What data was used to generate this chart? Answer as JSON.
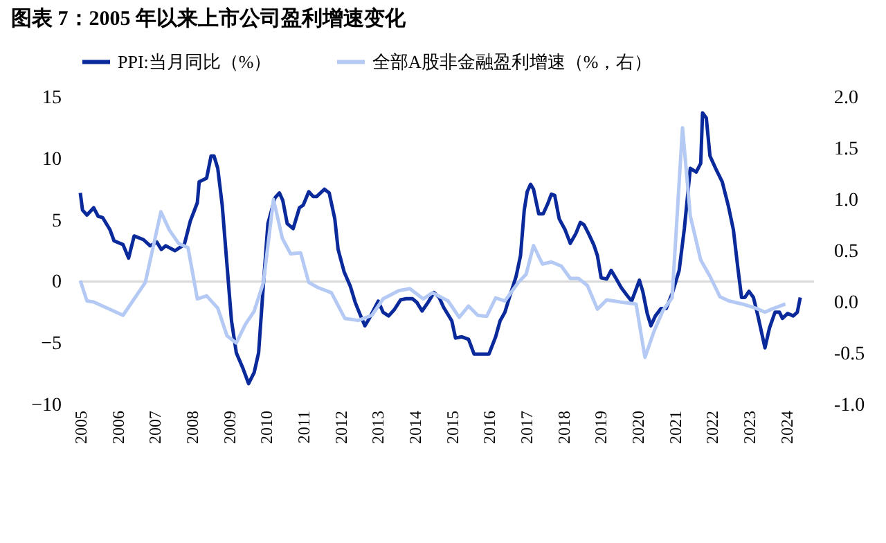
{
  "chart_data": {
    "type": "line",
    "title": "图表 7：2005 年以来上市公司盈利增速变化",
    "xlim": [
      2005,
      2024.75
    ],
    "xticks": [
      2005,
      2006,
      2007,
      2008,
      2009,
      2010,
      2011,
      2012,
      2013,
      2014,
      2015,
      2016,
      2017,
      2018,
      2019,
      2020,
      2021,
      2022,
      2023,
      2024
    ],
    "ylim": [
      -10,
      15
    ],
    "yticks": [
      -10,
      -5,
      0,
      5,
      10,
      15
    ],
    "y2lim": [
      -1,
      2
    ],
    "y2ticks": [
      {
        "value": -1,
        "label": "-1.0"
      },
      {
        "value": -0.5,
        "label": "-0.5"
      },
      {
        "value": 0,
        "label": "0.0"
      },
      {
        "value": 0.5,
        "label": "0.5"
      },
      {
        "value": 1,
        "label": "1.0"
      },
      {
        "value": 1.5,
        "label": "1.5"
      },
      {
        "value": 2,
        "label": "2.0"
      }
    ],
    "legend": "top",
    "grid": false,
    "ref_lines": [
      {
        "axis": "y",
        "value": 0,
        "color": "#d9d9d9"
      }
    ],
    "series": [
      {
        "name": "PPI:当月同比（%）",
        "color": "#0a2a9c",
        "x": [
          2005.0,
          2005.06,
          2005.18,
          2005.36,
          2005.48,
          2005.6,
          2005.8,
          2005.91,
          2006.15,
          2006.3,
          2006.45,
          2006.7,
          2006.88,
          2007.06,
          2007.18,
          2007.3,
          2007.55,
          2007.8,
          2007.96,
          2008.15,
          2008.2,
          2008.4,
          2008.52,
          2008.6,
          2008.7,
          2008.82,
          2008.95,
          2009.07,
          2009.2,
          2009.37,
          2009.53,
          2009.68,
          2009.8,
          2009.93,
          2010.05,
          2010.24,
          2010.36,
          2010.45,
          2010.57,
          2010.73,
          2010.9,
          2011.0,
          2011.15,
          2011.27,
          2011.36,
          2011.57,
          2011.7,
          2011.85,
          2011.94,
          2012.1,
          2012.27,
          2012.4,
          2012.52,
          2012.66,
          2012.78,
          2012.9,
          2013.02,
          2013.15,
          2013.3,
          2013.45,
          2013.62,
          2013.77,
          2013.94,
          2014.06,
          2014.2,
          2014.36,
          2014.52,
          2014.66,
          2014.78,
          2015.0,
          2015.1,
          2015.27,
          2015.45,
          2015.6,
          2015.88,
          2016.0,
          2016.18,
          2016.3,
          2016.43,
          2016.55,
          2016.73,
          2016.85,
          2016.95,
          2017.03,
          2017.12,
          2017.2,
          2017.34,
          2017.46,
          2017.58,
          2017.68,
          2017.77,
          2017.89,
          2018.05,
          2018.19,
          2018.34,
          2018.46,
          2018.56,
          2018.68,
          2018.82,
          2018.92,
          2019.02,
          2019.17,
          2019.29,
          2019.41,
          2019.56,
          2019.71,
          2019.84,
          2020.05,
          2020.14,
          2020.26,
          2020.36,
          2020.48,
          2020.63,
          2020.77,
          2020.93,
          2021.12,
          2021.26,
          2021.42,
          2021.58,
          2021.7,
          2021.75,
          2021.85,
          2021.95,
          2022.1,
          2022.28,
          2022.44,
          2022.58,
          2022.7,
          2022.8,
          2022.89,
          2023.0,
          2023.12,
          2023.24,
          2023.43,
          2023.55,
          2023.7,
          2023.82,
          2023.9,
          2024.04,
          2024.19,
          2024.3,
          2024.38
        ],
        "values": [
          7.2,
          5.8,
          5.4,
          6.0,
          5.3,
          5.2,
          4.2,
          3.3,
          3.0,
          1.9,
          3.7,
          3.4,
          2.9,
          3.2,
          2.6,
          2.9,
          2.5,
          3.0,
          4.9,
          6.4,
          8.1,
          8.4,
          10.2,
          10.2,
          9.2,
          6.2,
          1.3,
          -3.2,
          -5.8,
          -7.0,
          -8.3,
          -7.4,
          -5.8,
          -0.2,
          4.7,
          6.8,
          7.2,
          6.6,
          4.7,
          4.3,
          6.0,
          6.2,
          7.3,
          6.9,
          6.9,
          7.5,
          7.2,
          5.1,
          2.6,
          0.8,
          -0.4,
          -1.7,
          -2.6,
          -3.6,
          -3.0,
          -2.3,
          -1.6,
          -2.5,
          -2.8,
          -2.3,
          -1.5,
          -1.4,
          -1.4,
          -1.7,
          -2.4,
          -1.7,
          -0.9,
          -1.3,
          -2.1,
          -3.2,
          -4.6,
          -4.5,
          -4.7,
          -5.9,
          -5.9,
          -5.9,
          -4.5,
          -3.2,
          -2.5,
          -1.3,
          0.4,
          2.1,
          5.8,
          7.3,
          7.9,
          7.5,
          5.5,
          5.5,
          6.3,
          7.1,
          7.0,
          5.1,
          4.2,
          3.1,
          3.9,
          4.8,
          4.6,
          3.9,
          3.0,
          2.1,
          0.3,
          0.2,
          0.9,
          0.3,
          -0.5,
          -1.1,
          -1.6,
          0.1,
          -0.8,
          -2.6,
          -3.6,
          -2.8,
          -2.2,
          -2.2,
          -1.0,
          0.9,
          4.3,
          9.2,
          8.9,
          9.6,
          13.7,
          13.3,
          10.2,
          9.2,
          8.1,
          6.2,
          4.2,
          1.1,
          -1.3,
          -1.3,
          -0.8,
          -1.3,
          -2.8,
          -5.4,
          -3.8,
          -2.5,
          -2.5,
          -3.0,
          -2.6,
          -2.8,
          -2.5,
          -1.3
        ]
      },
      {
        "name": "全部A股非金融盈利增速（%，右）",
        "color": "#b4c9f4",
        "axis": "y2",
        "x": [
          2005.0,
          2005.18,
          2005.36,
          2006.15,
          2006.75,
          2007.17,
          2007.4,
          2007.65,
          2007.9,
          2008.15,
          2008.4,
          2008.7,
          2008.95,
          2009.2,
          2009.44,
          2009.68,
          2009.93,
          2010.2,
          2010.44,
          2010.66,
          2010.93,
          2011.15,
          2011.4,
          2011.76,
          2012.12,
          2012.48,
          2012.85,
          2013.15,
          2013.57,
          2013.87,
          2014.23,
          2014.48,
          2014.9,
          2015.2,
          2015.45,
          2015.7,
          2015.94,
          2016.18,
          2016.43,
          2016.79,
          2017.0,
          2017.2,
          2017.44,
          2017.68,
          2017.95,
          2018.19,
          2018.41,
          2018.65,
          2018.92,
          2019.17,
          2019.53,
          2019.96,
          2020.2,
          2020.45,
          2020.69,
          2020.93,
          2021.21,
          2021.42,
          2021.7,
          2021.95,
          2022.22,
          2022.46,
          2022.82,
          2023.18,
          2023.43,
          2023.61,
          2023.98
        ],
        "values": [
          0.21,
          0.01,
          0.0,
          -0.13,
          0.19,
          0.88,
          0.7,
          0.57,
          0.53,
          0.03,
          0.06,
          -0.06,
          -0.33,
          -0.4,
          -0.22,
          -0.09,
          0.19,
          1.0,
          0.62,
          0.47,
          0.48,
          0.19,
          0.14,
          0.09,
          -0.16,
          -0.18,
          -0.13,
          0.03,
          0.11,
          0.13,
          0.03,
          0.09,
          0.01,
          -0.15,
          -0.04,
          -0.13,
          -0.14,
          0.04,
          0.01,
          0.19,
          0.27,
          0.55,
          0.37,
          0.39,
          0.35,
          0.23,
          0.23,
          0.16,
          -0.07,
          0.02,
          0.0,
          -0.02,
          -0.54,
          -0.28,
          -0.08,
          0.04,
          1.7,
          0.84,
          0.41,
          0.25,
          0.05,
          0.01,
          -0.02,
          -0.06,
          -0.1,
          -0.07,
          -0.02
        ]
      }
    ]
  }
}
